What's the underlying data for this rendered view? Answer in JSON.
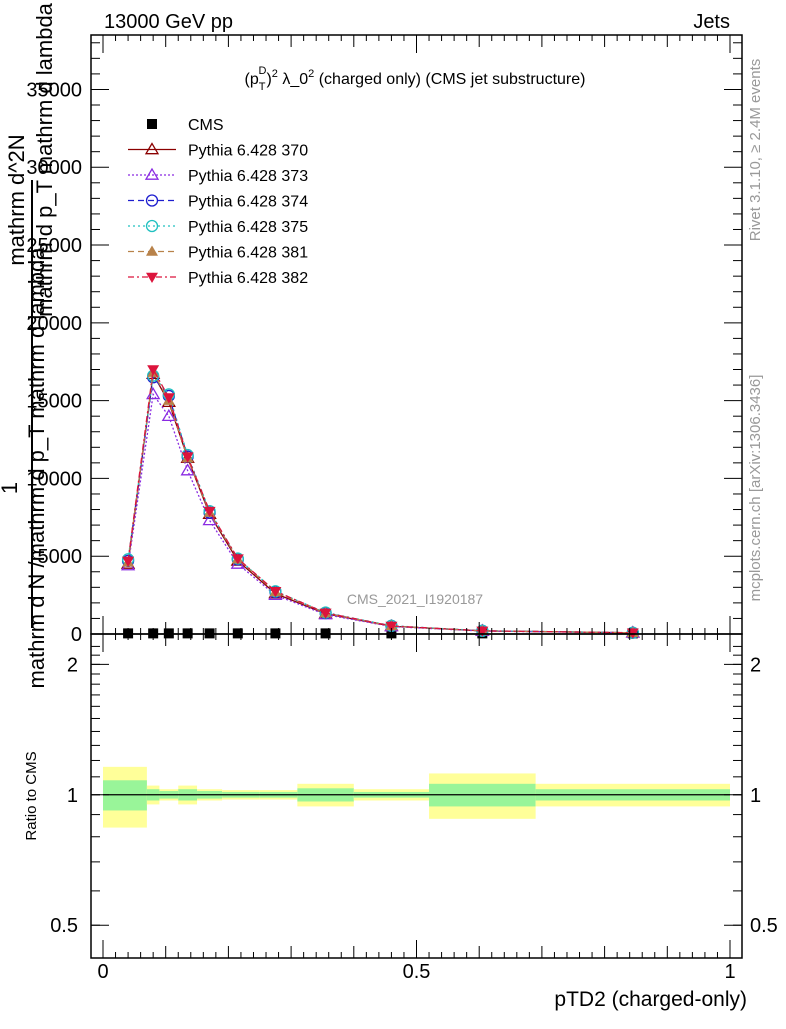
{
  "header": {
    "left": "13000 GeV pp",
    "right": "Jets"
  },
  "side_labels": {
    "rivet": "Rivet 3.1.10, ≥ 2.4M events",
    "mcplots": "mcplots.cern.ch [arXiv:1306.3436]"
  },
  "watermark": "CMS_2021_I1920187",
  "colors": {
    "cms": "#000000",
    "p370": "#8b0000",
    "p373": "#8a2be2",
    "p374": "#1e1ecf",
    "p375": "#20c0c0",
    "p381": "#b8824a",
    "p382": "#dc143c",
    "band_inner": "#99f599",
    "band_outer": "#ffff99"
  },
  "chart_data": [
    {
      "type": "line",
      "title": "(p_T^D)^2 λ_0^2 (charged only) (CMS jet substructure)",
      "ylabel_lines": [
        "1",
        "mathrm d N /mathrm d p_T mathrm d lambda",
        "mathrm d^2N",
        "mathrm d p_T mathrm d lambda"
      ],
      "xlim": [
        0,
        1
      ],
      "ylim": [
        0,
        38500
      ],
      "yticks": [
        0,
        5000,
        10000,
        15000,
        20000,
        25000,
        30000,
        35000
      ],
      "ytick_labels": [
        "0",
        "5000",
        "10000",
        "15000",
        "20000",
        "25000",
        "30000",
        "35000"
      ],
      "legend_position": "top-left",
      "bin_edges": [
        0,
        0.07,
        0.09,
        0.12,
        0.15,
        0.19,
        0.25,
        0.31,
        0.4,
        0.52,
        0.69,
        1.0
      ],
      "x": [
        0.04,
        0.08,
        0.105,
        0.135,
        0.17,
        0.215,
        0.275,
        0.355,
        0.46,
        0.605,
        0.845
      ],
      "series": [
        {
          "name": "CMS",
          "marker": "square",
          "color_key": "cms",
          "dash": "",
          "values": [
            40,
            40,
            40,
            40,
            40,
            40,
            40,
            40,
            40,
            40,
            40
          ]
        },
        {
          "name": "Pythia 6.428 370",
          "marker": "triangle-open",
          "color_key": "p370",
          "dash": "",
          "values": [
            4500,
            16700,
            14900,
            11300,
            7700,
            4700,
            2600,
            1300,
            500,
            200,
            80
          ]
        },
        {
          "name": "Pythia 6.428 373",
          "marker": "triangle-open",
          "color_key": "p373",
          "dash": "2,2",
          "values": [
            4400,
            15400,
            14000,
            10500,
            7300,
            4500,
            2500,
            1250,
            480,
            190,
            75
          ]
        },
        {
          "name": "Pythia 6.428 374",
          "marker": "circle-open",
          "color_key": "p374",
          "dash": "6,4",
          "values": [
            4700,
            16500,
            15300,
            11400,
            7800,
            4800,
            2700,
            1350,
            520,
            205,
            80
          ]
        },
        {
          "name": "Pythia 6.428 375",
          "marker": "circle-open",
          "color_key": "p375",
          "dash": "2,3",
          "values": [
            4800,
            16600,
            15400,
            11500,
            7900,
            4850,
            2750,
            1380,
            530,
            210,
            82
          ]
        },
        {
          "name": "Pythia 6.428 381",
          "marker": "triangle-filled",
          "color_key": "p381",
          "dash": "6,4",
          "values": [
            4600,
            16800,
            15000,
            11300,
            7800,
            4800,
            2700,
            1340,
            510,
            200,
            80
          ]
        },
        {
          "name": "Pythia 6.428 382",
          "marker": "triangledown-filled",
          "color_key": "p382",
          "dash": "6,3,2,3",
          "values": [
            4700,
            17000,
            15200,
            11400,
            7900,
            4850,
            2750,
            1360,
            520,
            205,
            82
          ]
        }
      ]
    },
    {
      "type": "area",
      "ylabel": "Ratio to CMS",
      "xlabel": "pTD2 (charged-only)",
      "xlim": [
        0,
        1
      ],
      "ylim": [
        0.42,
        2.35
      ],
      "log_y": true,
      "yticks": [
        0.5,
        1,
        2
      ],
      "ytick_labels": [
        "0.5",
        "1",
        "2"
      ],
      "xticks": [
        0,
        0.5,
        1
      ],
      "xtick_labels": [
        "0",
        "0.5",
        "1"
      ],
      "reference": 1,
      "bin_edges": [
        0,
        0.07,
        0.09,
        0.12,
        0.15,
        0.19,
        0.25,
        0.31,
        0.4,
        0.52,
        0.69,
        1.0
      ],
      "band_inner": [
        [
          0.92,
          1.08
        ],
        [
          0.97,
          1.03
        ],
        [
          0.98,
          1.02
        ],
        [
          0.97,
          1.03
        ],
        [
          0.98,
          1.02
        ],
        [
          0.985,
          1.015
        ],
        [
          0.985,
          1.015
        ],
        [
          0.965,
          1.035
        ],
        [
          0.985,
          1.015
        ],
        [
          0.94,
          1.06
        ],
        [
          0.97,
          1.03
        ]
      ],
      "band_outer": [
        [
          0.84,
          1.16
        ],
        [
          0.95,
          1.05
        ],
        [
          0.97,
          1.03
        ],
        [
          0.95,
          1.05
        ],
        [
          0.97,
          1.03
        ],
        [
          0.975,
          1.025
        ],
        [
          0.975,
          1.025
        ],
        [
          0.94,
          1.06
        ],
        [
          0.97,
          1.03
        ],
        [
          0.88,
          1.12
        ],
        [
          0.94,
          1.06
        ]
      ]
    }
  ]
}
